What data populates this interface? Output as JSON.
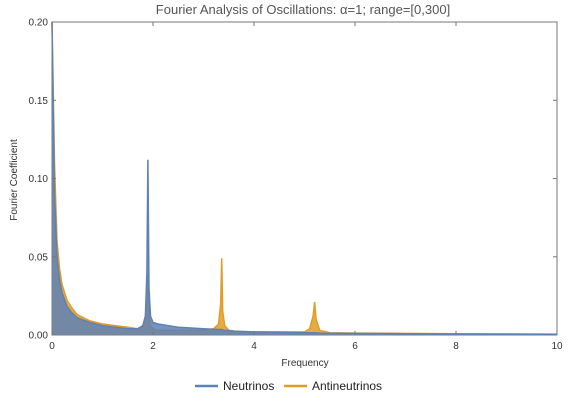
{
  "chart_data": {
    "type": "line",
    "title": "Fourier Analysis of Oscillations: α=1; range=[0,300]",
    "xlabel": "Frequency",
    "ylabel": "Fourier Coefficient",
    "xlim": [
      0,
      10
    ],
    "ylim": [
      0,
      0.2
    ],
    "x_ticks": [
      0,
      2,
      4,
      6,
      8,
      10
    ],
    "y_ticks": [
      0.0,
      0.05,
      0.1,
      0.15,
      0.2
    ],
    "x_tick_labels": [
      "0",
      "2",
      "4",
      "6",
      "8",
      "10"
    ],
    "y_tick_labels": [
      "0.00",
      "0.05",
      "0.10",
      "0.15",
      "0.20"
    ],
    "grid": false,
    "legend_position": "bottom",
    "series": [
      {
        "name": "Neutrinos",
        "color": "#5E81B5",
        "x": [
          0,
          0.05,
          0.1,
          0.15,
          0.2,
          0.3,
          0.4,
          0.5,
          0.75,
          1.0,
          1.25,
          1.5,
          1.7,
          1.8,
          1.85,
          1.88,
          1.9,
          1.92,
          1.95,
          2.0,
          2.1,
          2.3,
          2.5,
          3.0,
          3.3,
          3.36,
          3.4,
          3.6,
          4.0,
          5.0,
          5.2,
          5.3,
          6.0,
          7.0,
          8.0,
          9.0,
          10.0
        ],
        "y": [
          0.2,
          0.09,
          0.05,
          0.035,
          0.027,
          0.018,
          0.014,
          0.011,
          0.008,
          0.006,
          0.005,
          0.004,
          0.004,
          0.006,
          0.012,
          0.04,
          0.112,
          0.03,
          0.012,
          0.008,
          0.007,
          0.006,
          0.005,
          0.004,
          0.0035,
          0.0035,
          0.003,
          0.0025,
          0.002,
          0.0015,
          0.0015,
          0.0012,
          0.001,
          0.0008,
          0.0006,
          0.0005,
          0.0004
        ]
      },
      {
        "name": "Antineutrinos",
        "color": "#E19C24",
        "x": [
          0,
          0.05,
          0.1,
          0.15,
          0.2,
          0.3,
          0.4,
          0.5,
          0.75,
          1.0,
          1.25,
          1.5,
          1.7,
          1.8,
          1.85,
          1.88,
          1.9,
          1.92,
          1.95,
          2.0,
          2.1,
          2.5,
          3.0,
          3.2,
          3.3,
          3.34,
          3.36,
          3.38,
          3.42,
          3.5,
          3.7,
          4.0,
          4.5,
          5.0,
          5.1,
          5.17,
          5.2,
          5.23,
          5.3,
          5.5,
          6.0,
          7.0,
          8.0,
          9.0,
          10.0
        ],
        "y": [
          0.2,
          0.11,
          0.06,
          0.042,
          0.032,
          0.022,
          0.017,
          0.013,
          0.009,
          0.007,
          0.006,
          0.005,
          0.004,
          0.006,
          0.012,
          0.02,
          0.038,
          0.012,
          0.006,
          0.004,
          0.003,
          0.003,
          0.003,
          0.004,
          0.007,
          0.02,
          0.049,
          0.015,
          0.006,
          0.003,
          0.002,
          0.002,
          0.002,
          0.002,
          0.004,
          0.012,
          0.021,
          0.01,
          0.003,
          0.0015,
          0.0012,
          0.001,
          0.0008,
          0.0007,
          0.0006
        ]
      }
    ]
  }
}
